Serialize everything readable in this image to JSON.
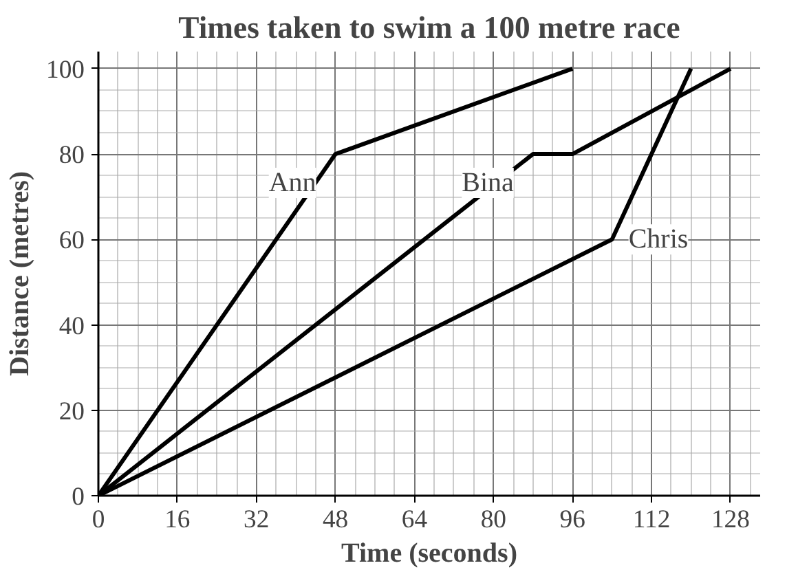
{
  "chart_data": {
    "type": "line",
    "title": "Times taken to swim a 100 metre race",
    "xlabel": "Time (seconds)",
    "ylabel": "Distance (metres)",
    "series": [
      {
        "name": "Ann",
        "color": "#000000",
        "x": [
          0,
          48,
          96
        ],
        "values": [
          0,
          80,
          100
        ]
      },
      {
        "name": "Bina",
        "color": "#000000",
        "x": [
          0,
          88,
          96,
          128
        ],
        "values": [
          0,
          80,
          80,
          100
        ]
      },
      {
        "name": "Chris",
        "color": "#000000",
        "x": [
          0,
          104,
          120
        ],
        "values": [
          0,
          60,
          100
        ]
      }
    ],
    "xlim": [
      0,
      134
    ],
    "ylim": [
      0,
      104
    ],
    "xticks": [
      0,
      16,
      32,
      48,
      64,
      80,
      96,
      112,
      128
    ],
    "yticks": [
      0,
      20,
      40,
      60,
      80,
      100
    ],
    "grid": true
  }
}
